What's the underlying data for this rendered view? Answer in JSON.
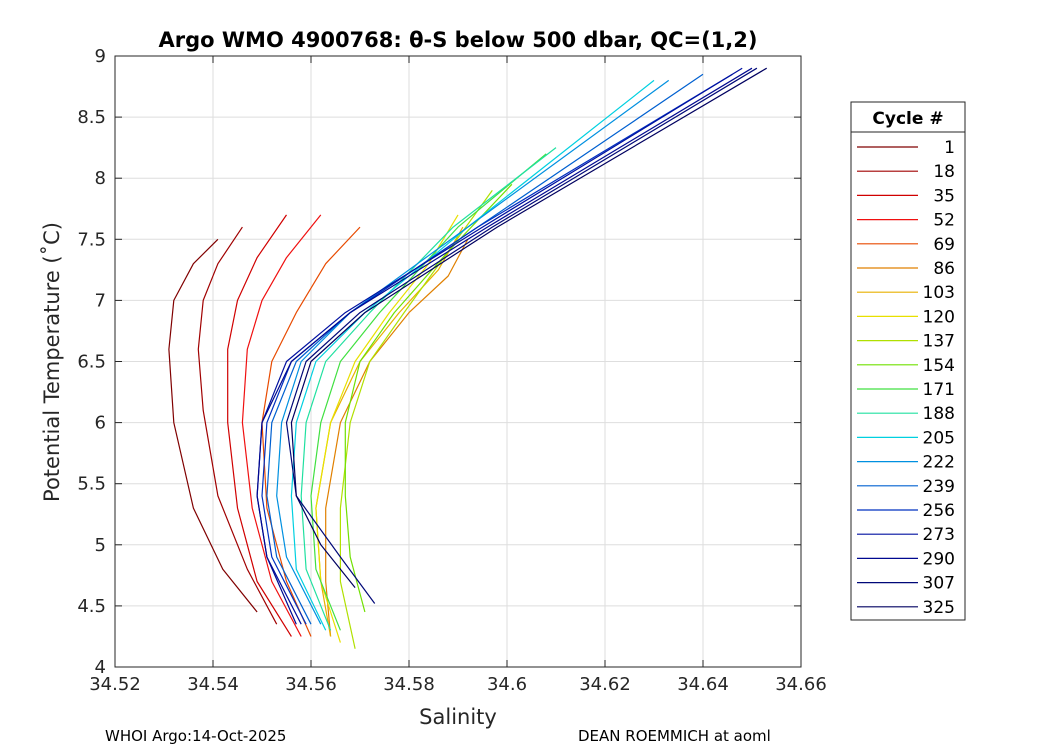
{
  "chart_data": {
    "type": "line",
    "title": "Argo WMO 4900768: θ-S below 500 dbar,  QC=(1,2)",
    "xlabel": "Salinity",
    "ylabel": "Potential Temperature (˚C)",
    "xlim": [
      34.52,
      34.66
    ],
    "ylim": [
      4,
      9
    ],
    "xticks": [
      "34.52",
      "34.54",
      "34.56",
      "34.58",
      "34.6",
      "34.62",
      "34.64",
      "34.66"
    ],
    "yticks": [
      "4",
      "4.5",
      "5",
      "5.5",
      "6",
      "6.5",
      "7",
      "7.5",
      "8",
      "8.5",
      "9"
    ],
    "grid": true,
    "legend_position": "right",
    "legend_title": "Cycle #",
    "series": [
      {
        "name": "1",
        "color": "#800000",
        "x": [
          34.549,
          34.542,
          34.536,
          34.532,
          34.531,
          34.532,
          34.536,
          34.541
        ],
        "y": [
          4.45,
          4.8,
          5.3,
          6.0,
          6.6,
          7.0,
          7.3,
          7.5
        ]
      },
      {
        "name": "18",
        "color": "#a00000",
        "x": [
          34.553,
          34.547,
          34.541,
          34.538,
          34.537,
          34.538,
          34.541,
          34.546
        ],
        "y": [
          4.35,
          4.8,
          5.4,
          6.1,
          6.6,
          7.0,
          7.3,
          7.6
        ]
      },
      {
        "name": "35",
        "color": "#d00000",
        "x": [
          34.556,
          34.549,
          34.545,
          34.543,
          34.543,
          34.545,
          34.549,
          34.555
        ],
        "y": [
          4.25,
          4.7,
          5.3,
          6.0,
          6.6,
          7.0,
          7.35,
          7.7
        ]
      },
      {
        "name": "52",
        "color": "#f01010",
        "x": [
          34.558,
          34.552,
          34.548,
          34.546,
          34.547,
          34.55,
          34.555,
          34.562
        ],
        "y": [
          4.25,
          4.7,
          5.3,
          6.0,
          6.6,
          7.0,
          7.35,
          7.7
        ]
      },
      {
        "name": "69",
        "color": "#e84a00",
        "x": [
          34.56,
          34.555,
          34.551,
          34.55,
          34.552,
          34.557,
          34.563,
          34.57
        ],
        "y": [
          4.25,
          4.7,
          5.3,
          6.0,
          6.5,
          6.9,
          7.3,
          7.6
        ]
      },
      {
        "name": "86",
        "color": "#e08000",
        "x": [
          34.564,
          34.563,
          34.563,
          34.566,
          34.572,
          34.58,
          34.588,
          34.592
        ],
        "y": [
          4.25,
          4.7,
          5.3,
          6.0,
          6.5,
          6.9,
          7.2,
          7.5
        ]
      },
      {
        "name": "103",
        "color": "#e8b000",
        "x": [
          34.564,
          34.562,
          34.561,
          34.564,
          34.57,
          34.578,
          34.586,
          34.591
        ],
        "y": [
          4.25,
          4.7,
          5.3,
          6.0,
          6.5,
          6.9,
          7.25,
          7.6
        ]
      },
      {
        "name": "120",
        "color": "#e8e000",
        "x": [
          34.566,
          34.562,
          34.561,
          34.564,
          34.569,
          34.576,
          34.584,
          34.59
        ],
        "y": [
          4.2,
          4.7,
          5.3,
          6.0,
          6.5,
          6.9,
          7.3,
          7.7
        ]
      },
      {
        "name": "137",
        "color": "#b0e000",
        "x": [
          34.569,
          34.566,
          34.566,
          34.568,
          34.572,
          34.579,
          34.588,
          34.597
        ],
        "y": [
          4.15,
          4.7,
          5.3,
          6.0,
          6.5,
          6.9,
          7.4,
          7.9
        ]
      },
      {
        "name": "154",
        "color": "#70e000",
        "x": [
          34.571,
          34.568,
          34.567,
          34.567,
          34.57,
          34.577,
          34.588,
          34.601
        ],
        "y": [
          4.45,
          4.9,
          5.4,
          6.0,
          6.5,
          6.9,
          7.4,
          7.95
        ]
      },
      {
        "name": "171",
        "color": "#40e040",
        "x": [
          34.566,
          34.561,
          34.56,
          34.562,
          34.566,
          34.574,
          34.59,
          34.608
        ],
        "y": [
          4.3,
          4.8,
          5.4,
          6.0,
          6.5,
          6.9,
          7.6,
          8.2
        ]
      },
      {
        "name": "188",
        "color": "#20e0a0",
        "x": [
          34.564,
          34.559,
          34.558,
          34.559,
          34.563,
          34.572,
          34.589,
          34.61
        ],
        "y": [
          4.3,
          4.8,
          5.4,
          6.0,
          6.5,
          6.9,
          7.6,
          8.25
        ]
      },
      {
        "name": "205",
        "color": "#00d0e0",
        "x": [
          34.563,
          34.557,
          34.556,
          34.557,
          34.561,
          34.571,
          34.592,
          34.63
        ],
        "y": [
          4.3,
          4.8,
          5.4,
          6.0,
          6.5,
          6.9,
          7.6,
          8.8
        ]
      },
      {
        "name": "222",
        "color": "#0090e0",
        "x": [
          34.562,
          34.555,
          34.553,
          34.554,
          34.558,
          34.568,
          34.592,
          34.633
        ],
        "y": [
          4.35,
          4.9,
          5.4,
          6.0,
          6.5,
          6.9,
          7.6,
          8.8
        ]
      },
      {
        "name": "239",
        "color": "#0060d0",
        "x": [
          34.56,
          34.553,
          34.551,
          34.552,
          34.557,
          34.568,
          34.594,
          34.64
        ],
        "y": [
          4.35,
          4.9,
          5.4,
          6.0,
          6.5,
          6.9,
          7.6,
          8.85
        ]
      },
      {
        "name": "256",
        "color": "#0030c0",
        "x": [
          34.559,
          34.552,
          34.55,
          34.551,
          34.556,
          34.568,
          34.594,
          34.646
        ],
        "y": [
          4.35,
          4.9,
          5.4,
          6.0,
          6.5,
          6.9,
          7.6,
          8.85
        ]
      },
      {
        "name": "273",
        "color": "#0010a0",
        "x": [
          34.558,
          34.551,
          34.549,
          34.55,
          34.555,
          34.567,
          34.595,
          34.648
        ],
        "y": [
          4.35,
          4.9,
          5.4,
          6.0,
          6.5,
          6.9,
          7.6,
          8.9
        ]
      },
      {
        "name": "290",
        "color": "#000890",
        "x": [
          34.557,
          34.551,
          34.549,
          34.55,
          34.556,
          34.568,
          34.596,
          34.65
        ],
        "y": [
          4.35,
          4.9,
          5.4,
          6.0,
          6.5,
          6.9,
          7.6,
          8.9
        ]
      },
      {
        "name": "307",
        "color": "#000878",
        "x": [
          34.573,
          34.566,
          34.557,
          34.555,
          34.559,
          34.57,
          34.597,
          34.651
        ],
        "y": [
          4.52,
          4.9,
          5.4,
          6.0,
          6.5,
          6.9,
          7.6,
          8.9
        ]
      },
      {
        "name": "325",
        "color": "#000060",
        "x": [
          34.569,
          34.562,
          34.557,
          34.556,
          34.56,
          34.571,
          34.598,
          34.653
        ],
        "y": [
          4.65,
          5.0,
          5.4,
          6.0,
          6.5,
          6.9,
          7.6,
          8.9
        ]
      }
    ]
  },
  "footer": {
    "left": "WHOI Argo:14-Oct-2025",
    "right": "DEAN ROEMMICH at aoml"
  }
}
